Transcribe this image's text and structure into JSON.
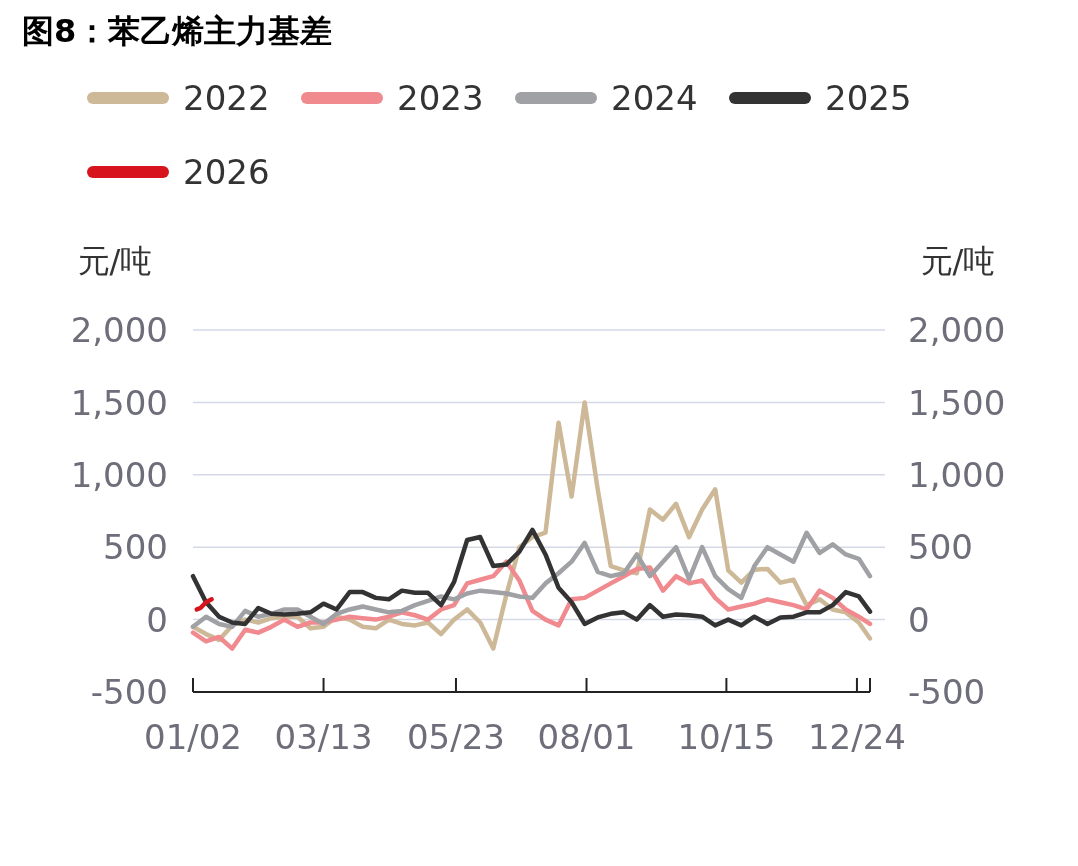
{
  "chart_data": {
    "type": "line",
    "title": "图8：苯乙烯主力基差",
    "x": [
      "--01-02",
      "--01-09",
      "--01-16",
      "--01-23",
      "--01-30",
      "--02-06",
      "--02-13",
      "--02-20",
      "--02-27",
      "--03-06",
      "--03-13",
      "--03-20",
      "--03-27",
      "--04-03",
      "--04-10",
      "--04-17",
      "--04-24",
      "--05-01",
      "--05-08",
      "--05-15",
      "--05-22",
      "--05-29",
      "--06-05",
      "--06-12",
      "--06-19",
      "--06-26",
      "--07-03",
      "--07-10",
      "--07-17",
      "--07-24",
      "--07-31",
      "--08-07",
      "--08-14",
      "--08-21",
      "--08-28",
      "--09-04",
      "--09-11",
      "--09-18",
      "--09-25",
      "--10-02",
      "--10-09",
      "--10-16",
      "--10-23",
      "--10-30",
      "--11-06",
      "--11-13",
      "--11-20",
      "--11-27",
      "--12-04",
      "--12-11",
      "--12-18",
      "--12-25",
      "--12-31"
    ],
    "series": [
      {
        "name": "2022",
        "color": "#cdb898",
        "values": [
          -50,
          -100,
          -140,
          -40,
          0,
          -20,
          10,
          20,
          20,
          -60,
          -50,
          20,
          0,
          -50,
          -60,
          0,
          -30,
          -40,
          -20,
          -100,
          0,
          70,
          -20,
          -200,
          170,
          500,
          570,
          600,
          1360,
          850,
          1500,
          900,
          370,
          340,
          320,
          760,
          690,
          800,
          570,
          760,
          900,
          340,
          255,
          345,
          350,
          255,
          275,
          100,
          140,
          70,
          50,
          -20,
          -130
        ]
      },
      {
        "name": "2023",
        "color": "#f08a8f",
        "values": [
          -90,
          -150,
          -120,
          -200,
          -70,
          -90,
          -50,
          0,
          -50,
          -20,
          -20,
          0,
          20,
          10,
          0,
          20,
          50,
          30,
          0,
          70,
          100,
          250,
          275,
          300,
          400,
          270,
          60,
          0,
          -40,
          140,
          150,
          200,
          250,
          300,
          350,
          360,
          200,
          300,
          250,
          270,
          150,
          70,
          90,
          110,
          140,
          120,
          100,
          70,
          200,
          150,
          70,
          20,
          -30
        ]
      },
      {
        "name": "2024",
        "color": "#a0a1a5",
        "values": [
          -50,
          20,
          -30,
          -50,
          60,
          20,
          40,
          70,
          70,
          20,
          -30,
          40,
          70,
          90,
          70,
          50,
          60,
          100,
          130,
          160,
          140,
          180,
          200,
          190,
          180,
          160,
          150,
          250,
          320,
          400,
          530,
          330,
          300,
          320,
          450,
          300,
          400,
          500,
          280,
          500,
          300,
          210,
          150,
          370,
          500,
          450,
          400,
          600,
          460,
          520,
          450,
          420,
          300
        ]
      },
      {
        "name": "2025",
        "color": "#333333",
        "values": [
          300,
          120,
          20,
          -20,
          -30,
          80,
          40,
          35,
          40,
          50,
          110,
          70,
          190,
          190,
          150,
          140,
          200,
          185,
          185,
          100,
          260,
          550,
          570,
          370,
          380,
          470,
          620,
          450,
          220,
          120,
          -30,
          15,
          40,
          50,
          0,
          100,
          20,
          35,
          30,
          20,
          -40,
          0,
          -40,
          20,
          -30,
          15,
          20,
          50,
          50,
          100,
          190,
          160,
          55
        ]
      },
      {
        "name": "2026",
        "color": "#d7141e",
        "x": [
          "--01-04",
          "--01-06",
          "--01-09",
          "--01-12"
        ],
        "values": [
          70,
          80,
          120,
          140
        ]
      }
    ],
    "xlim": [
      "--01-02",
      "--12-31"
    ],
    "xticks": [
      {
        "value": "--01-02",
        "label": "01/02"
      },
      {
        "value": "--03-13",
        "label": "03/13"
      },
      {
        "value": "--05-23",
        "label": "05/23"
      },
      {
        "value": "--08-01",
        "label": "08/01"
      },
      {
        "value": "--10-15",
        "label": "10/15"
      },
      {
        "value": "--12-24",
        "label": "12/24"
      },
      {
        "value": "--12-31",
        "label": null
      }
    ],
    "ylim": [
      -500,
      2000
    ],
    "yticks": [
      {
        "value": -500,
        "label": "-500"
      },
      {
        "value": 0,
        "label": "0"
      },
      {
        "value": 500,
        "label": "500"
      },
      {
        "value": 1000,
        "label": "1,000"
      },
      {
        "value": 1500,
        "label": "1,500"
      },
      {
        "value": 2000,
        "label": "2,000"
      }
    ],
    "y2lim": [
      -500,
      2000
    ],
    "y2ticks": [
      {
        "value": -500,
        "label": "-500"
      },
      {
        "value": 0,
        "label": "0"
      },
      {
        "value": 500,
        "label": "500"
      },
      {
        "value": 1000,
        "label": "1,000"
      },
      {
        "value": 1500,
        "label": "1,500"
      },
      {
        "value": 2000,
        "label": "2,000"
      }
    ],
    "ylabel": "元/吨",
    "y2label": "元/吨",
    "grid": "y",
    "legend": "top",
    "marker": "none",
    "line_style": "solid"
  }
}
